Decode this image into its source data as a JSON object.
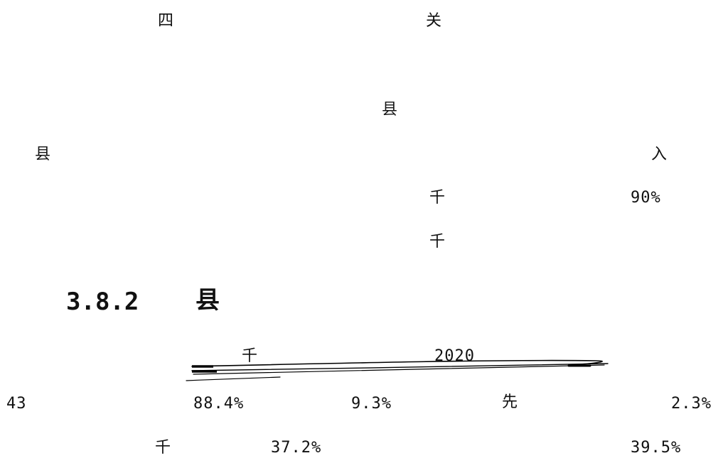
{
  "top_row": {
    "left": "四",
    "right": "关"
  },
  "mid_center": "县",
  "mid_row": {
    "left": "县",
    "right": "入"
  },
  "row_qian_1": {
    "char": "千",
    "value": "90%"
  },
  "row_qian_2": {
    "char": "千"
  },
  "section": {
    "number": "3.8.2",
    "title": "县"
  },
  "chart_caption": {
    "char": "千",
    "year": "2020"
  },
  "stats_row": {
    "count": "43",
    "pct_a": "88.4%",
    "pct_b": "9.3%",
    "char": "先",
    "pct_c": "2.3%"
  },
  "bottom_row": {
    "char": "千",
    "pct_a": "37.2%",
    "pct_b": "39.5%"
  }
}
